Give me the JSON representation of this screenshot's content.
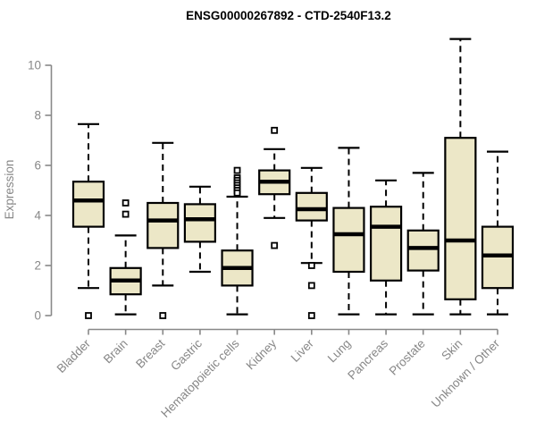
{
  "chart_data": {
    "type": "boxplot",
    "title": "ENSG00000267892 - CTD-2540F13.2",
    "ylabel": "Expression",
    "xlabel": "",
    "ylim": [
      0,
      11.2
    ],
    "yticks": [
      0,
      2,
      4,
      6,
      8,
      10
    ],
    "grid": false,
    "legend": false,
    "categories": [
      "Bladder",
      "Brain",
      "Breast",
      "Gastric",
      "Hematopoietic cells",
      "Kidney",
      "Liver",
      "Lung",
      "Pancreas",
      "Prostate",
      "Skin",
      "Unknown / Other"
    ],
    "series": [
      {
        "name": "Bladder",
        "whisker_low": 1.1,
        "q1": 3.55,
        "median": 4.6,
        "q3": 5.35,
        "whisker_high": 7.65,
        "outliers": [
          0
        ]
      },
      {
        "name": "Brain",
        "whisker_low": 0.05,
        "q1": 0.85,
        "median": 1.4,
        "q3": 1.9,
        "whisker_high": 3.2,
        "outliers": [
          4.5,
          4.05
        ]
      },
      {
        "name": "Breast",
        "whisker_low": 1.2,
        "q1": 2.7,
        "median": 3.8,
        "q3": 4.5,
        "whisker_high": 6.9,
        "outliers": [
          0
        ]
      },
      {
        "name": "Gastric",
        "whisker_low": 1.75,
        "q1": 2.95,
        "median": 3.85,
        "q3": 4.45,
        "whisker_high": 5.15,
        "outliers": []
      },
      {
        "name": "Hematopoietic cells",
        "whisker_low": 0.05,
        "q1": 1.2,
        "median": 1.9,
        "q3": 2.6,
        "whisker_high": 4.75,
        "outliers": [
          5.8,
          5.5,
          5.4,
          5.3,
          5.2,
          5.1,
          5.0,
          4.9
        ]
      },
      {
        "name": "Kidney",
        "whisker_low": 3.9,
        "q1": 4.85,
        "median": 5.35,
        "q3": 5.8,
        "whisker_high": 6.65,
        "outliers": [
          7.4,
          2.8
        ]
      },
      {
        "name": "Liver",
        "whisker_low": 2.1,
        "q1": 3.8,
        "median": 4.25,
        "q3": 4.9,
        "whisker_high": 5.9,
        "outliers": [
          2.0,
          1.2,
          0
        ]
      },
      {
        "name": "Lung",
        "whisker_low": 0.05,
        "q1": 1.75,
        "median": 3.25,
        "q3": 4.3,
        "whisker_high": 6.7,
        "outliers": []
      },
      {
        "name": "Pancreas",
        "whisker_low": 0.05,
        "q1": 1.4,
        "median": 3.55,
        "q3": 4.35,
        "whisker_high": 5.4,
        "outliers": []
      },
      {
        "name": "Prostate",
        "whisker_low": 0.05,
        "q1": 1.8,
        "median": 2.7,
        "q3": 3.4,
        "whisker_high": 5.7,
        "outliers": []
      },
      {
        "name": "Skin",
        "whisker_low": 0.05,
        "q1": 0.65,
        "median": 3.0,
        "q3": 7.1,
        "whisker_high": 11.05,
        "outliers": []
      },
      {
        "name": "Unknown / Other",
        "whisker_low": 0.05,
        "q1": 1.1,
        "median": 2.4,
        "q3": 3.55,
        "whisker_high": 6.55,
        "outliers": []
      }
    ]
  },
  "colors": {
    "background": "#ffffff",
    "box_fill": "#ece7c7",
    "box_stroke": "#000000",
    "median": "#000000",
    "whisker": "#000000",
    "outlier_fill": "#ffffff",
    "axis": "#888888",
    "axis_text": "#878787",
    "title_text": "#000000"
  }
}
